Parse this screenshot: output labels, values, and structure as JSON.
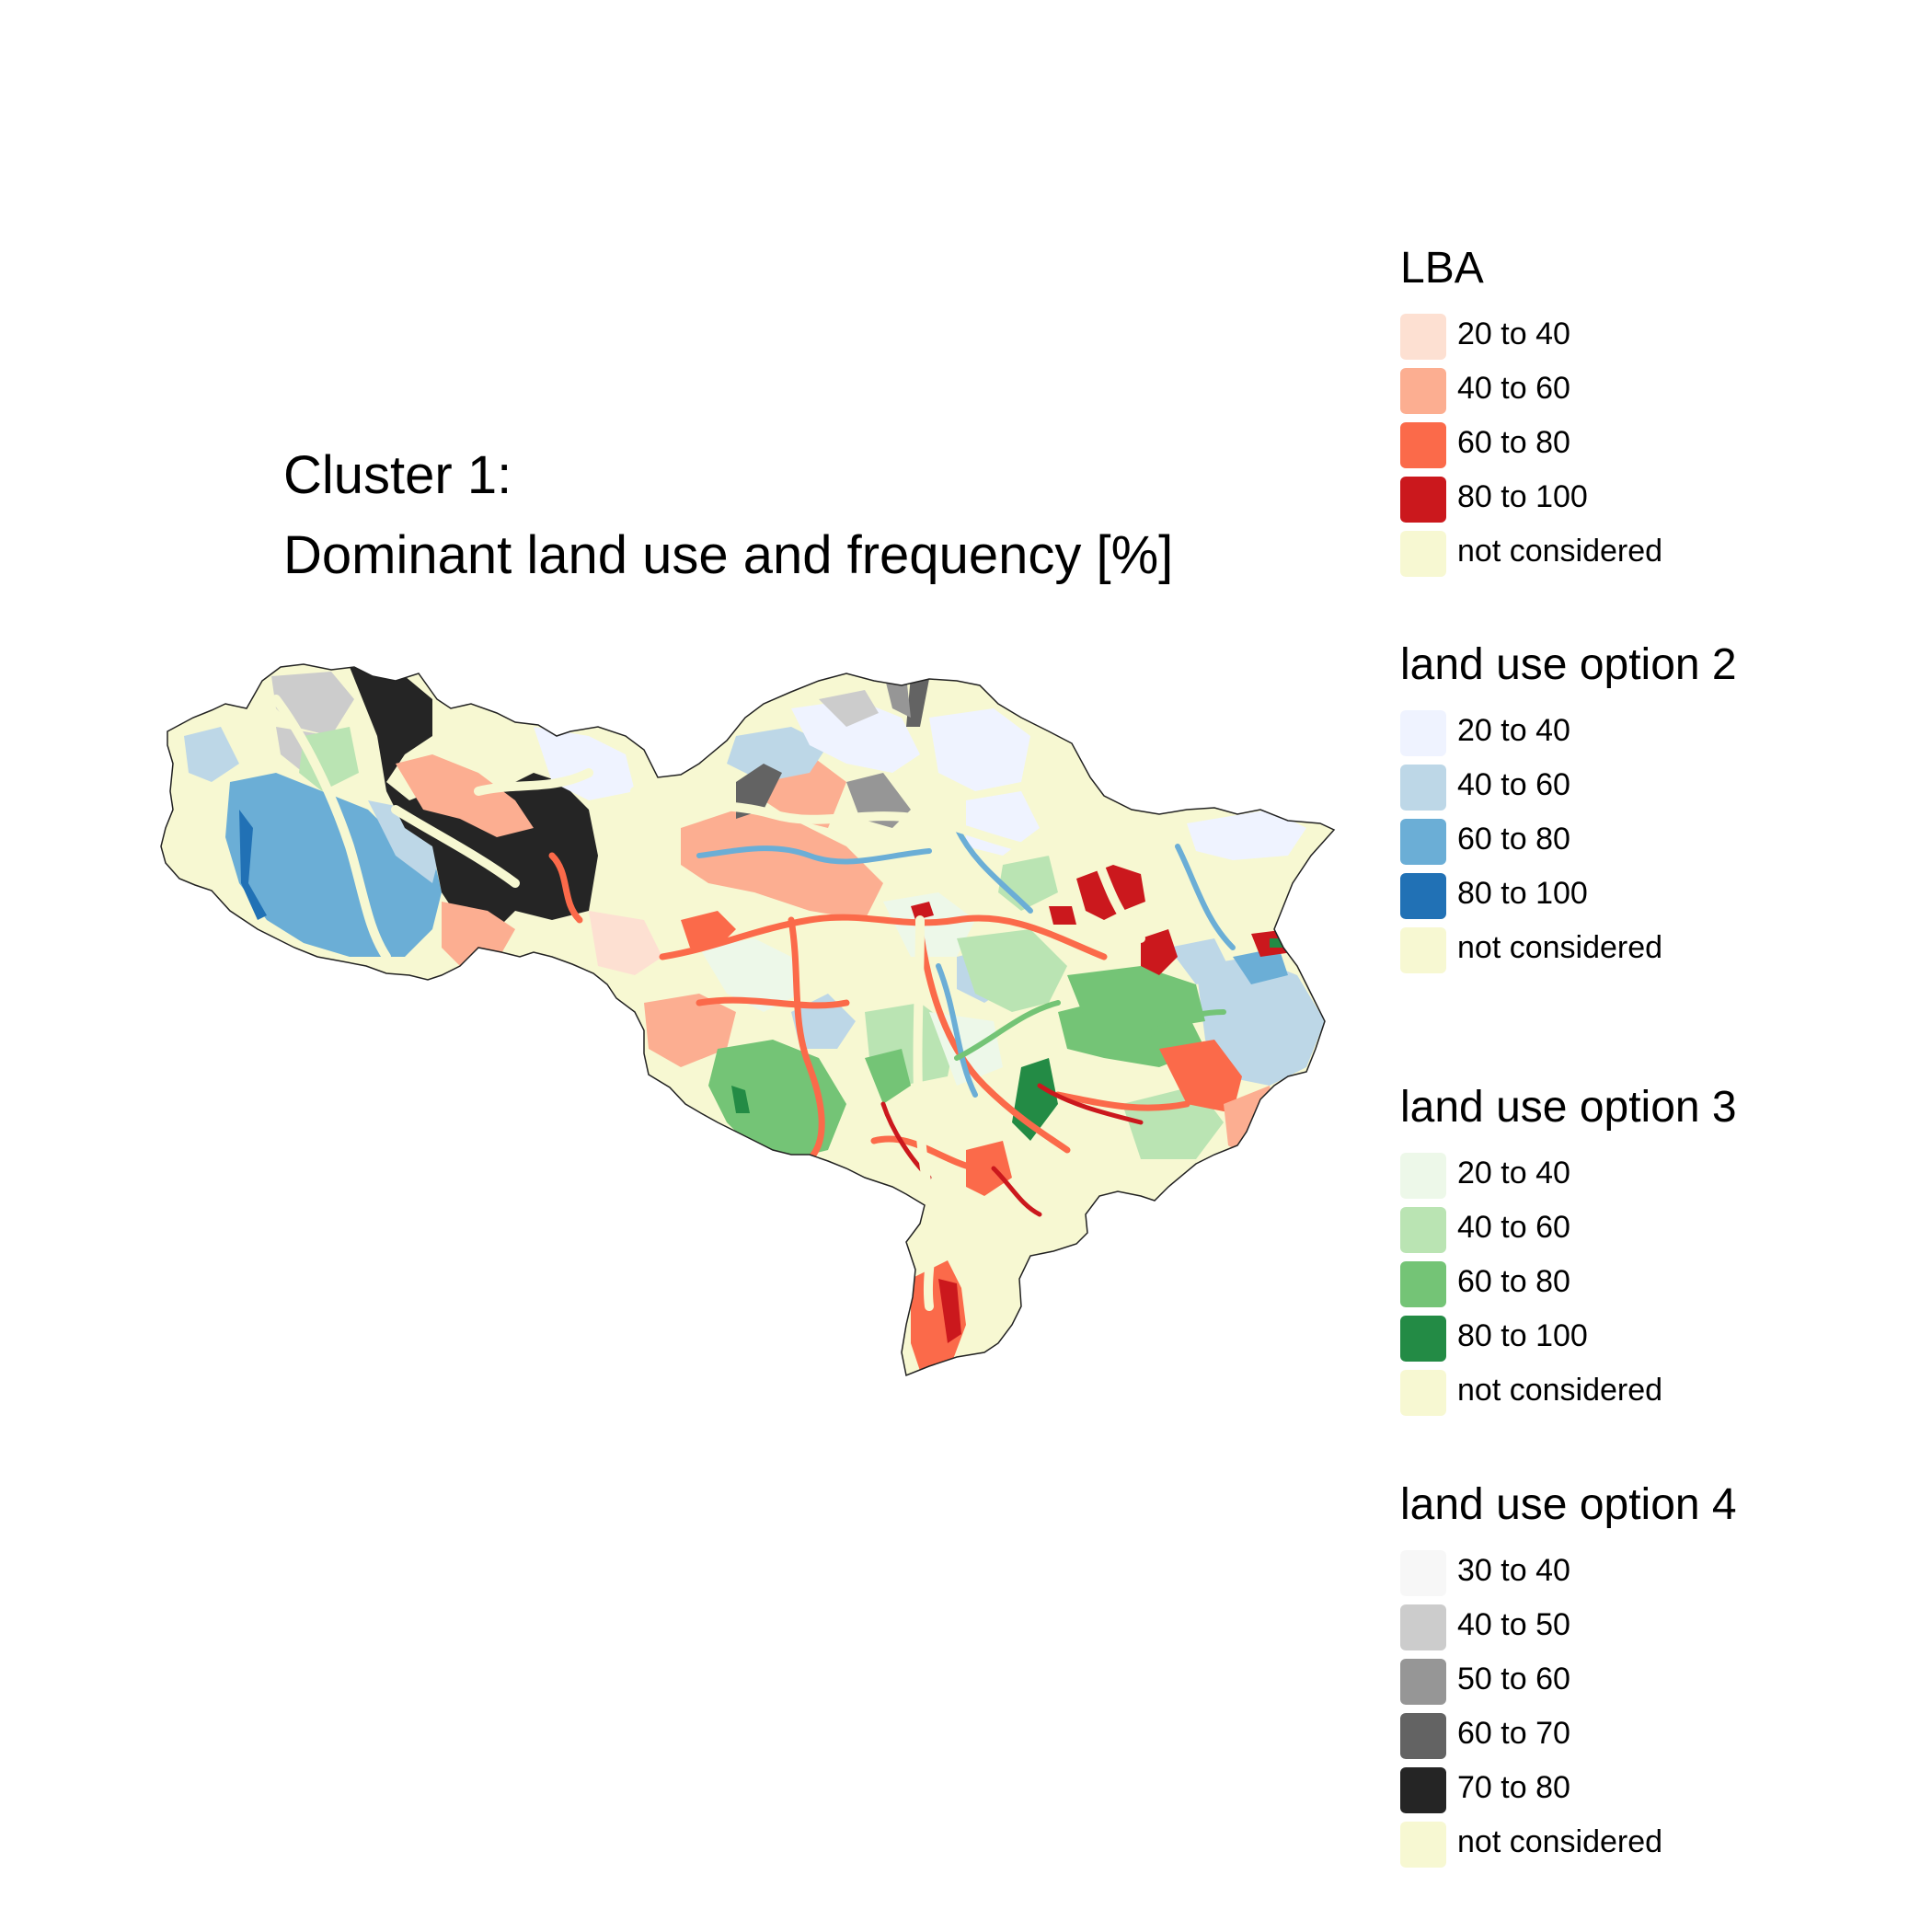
{
  "title": {
    "line1": "Cluster 1:",
    "line2": "Dominant land use and frequency [%]"
  },
  "colors": {
    "not_considered": "#F7F8D2",
    "boundary": "#222222",
    "background": "#FFFFFF"
  },
  "legends": [
    {
      "title": "LBA",
      "items": [
        {
          "label": "20 to 40",
          "color": "#FDE0D2"
        },
        {
          "label": "40 to 60",
          "color": "#FCAE91"
        },
        {
          "label": "60 to 80",
          "color": "#FB6A4A"
        },
        {
          "label": "80 to 100",
          "color": "#CB181D"
        },
        {
          "label": "not considered",
          "color": "#F7F8D2"
        }
      ]
    },
    {
      "title": "land use option 2",
      "items": [
        {
          "label": "20 to 40",
          "color": "#EFF3FF"
        },
        {
          "label": "40 to 60",
          "color": "#BDD7E7"
        },
        {
          "label": "60 to 80",
          "color": "#6BAED6"
        },
        {
          "label": "80 to 100",
          "color": "#2171B5"
        },
        {
          "label": "not considered",
          "color": "#F7F8D2"
        }
      ]
    },
    {
      "title": "land use option 3",
      "items": [
        {
          "label": "20 to 40",
          "color": "#EDF8E9"
        },
        {
          "label": "40 to 60",
          "color": "#BAE4B3"
        },
        {
          "label": "60 to 80",
          "color": "#74C476"
        },
        {
          "label": "80 to 100",
          "color": "#238B45"
        },
        {
          "label": "not considered",
          "color": "#F7F8D2"
        }
      ]
    },
    {
      "title": "land use option 4",
      "items": [
        {
          "label": "30 to 40",
          "color": "#F7F7F7"
        },
        {
          "label": "40 to 50",
          "color": "#CCCCCC"
        },
        {
          "label": "50 to 60",
          "color": "#969696"
        },
        {
          "label": "60 to 70",
          "color": "#636363"
        },
        {
          "label": "70 to 80",
          "color": "#252525"
        },
        {
          "label": "not considered",
          "color": "#F7F8D2"
        }
      ]
    }
  ]
}
